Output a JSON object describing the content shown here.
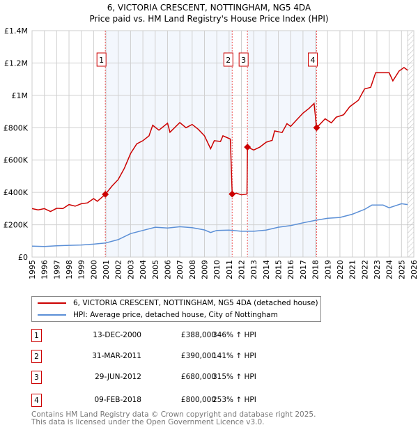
{
  "title_line1": "6, VICTORIA CRESCENT, NOTTINGHAM, NG5 4DA",
  "title_line2": "Price paid vs. HM Land Registry's House Price Index (HPI)",
  "chart_data": {
    "type": "line",
    "xlim": [
      1995,
      2026
    ],
    "ylim": [
      0,
      1400000
    ],
    "y_ticks": [
      0,
      200000,
      400000,
      600000,
      800000,
      1000000,
      1200000,
      1400000
    ],
    "y_tick_labels": [
      "£0",
      "£200K",
      "£400K",
      "£600K",
      "£800K",
      "£1M",
      "£1.2M",
      "£1.4M"
    ],
    "x_ticks": [
      "1995",
      "1996",
      "1997",
      "1998",
      "1999",
      "2000",
      "2001",
      "2002",
      "2003",
      "2004",
      "2005",
      "2006",
      "2007",
      "2008",
      "2009",
      "2010",
      "2011",
      "2012",
      "2013",
      "2014",
      "2015",
      "2016",
      "2017",
      "2018",
      "2019",
      "2020",
      "2021",
      "2022",
      "2023",
      "2024",
      "2025",
      "2026"
    ],
    "grid": true,
    "forecast_hatch_from": 2025.5,
    "shaded_ranges": [
      [
        2000.95,
        2011.25
      ],
      [
        2012.49,
        2018.11
      ]
    ],
    "series": [
      {
        "name": "6, VICTORIA CRESCENT, NOTTINGHAM, NG5 4DA (detached house)",
        "color": "#cc0000",
        "points": [
          [
            1995,
            300000
          ],
          [
            1995.5,
            292000
          ],
          [
            1996,
            300000
          ],
          [
            1996.5,
            282000
          ],
          [
            1997,
            302000
          ],
          [
            1997.5,
            300000
          ],
          [
            1998,
            325000
          ],
          [
            1998.5,
            315000
          ],
          [
            1999,
            330000
          ],
          [
            1999.5,
            335000
          ],
          [
            2000,
            362000
          ],
          [
            2000.3,
            345000
          ],
          [
            2000.95,
            388000
          ],
          [
            2001.5,
            440000
          ],
          [
            2002,
            480000
          ],
          [
            2002.5,
            550000
          ],
          [
            2003,
            640000
          ],
          [
            2003.5,
            700000
          ],
          [
            2004,
            720000
          ],
          [
            2004.5,
            750000
          ],
          [
            2004.8,
            815000
          ],
          [
            2005.3,
            785000
          ],
          [
            2006,
            828000
          ],
          [
            2006.2,
            772000
          ],
          [
            2007,
            832000
          ],
          [
            2007.5,
            800000
          ],
          [
            2008,
            820000
          ],
          [
            2008.5,
            790000
          ],
          [
            2009,
            750000
          ],
          [
            2009.5,
            670000
          ],
          [
            2009.8,
            720000
          ],
          [
            2010.3,
            715000
          ],
          [
            2010.5,
            750000
          ],
          [
            2011.1,
            730000
          ],
          [
            2011.25,
            390000
          ],
          [
            2011.6,
            395000
          ],
          [
            2012,
            385000
          ],
          [
            2012.45,
            390000
          ],
          [
            2012.49,
            680000
          ],
          [
            2013,
            662000
          ],
          [
            2013.5,
            680000
          ],
          [
            2014,
            710000
          ],
          [
            2014.5,
            722000
          ],
          [
            2014.7,
            780000
          ],
          [
            2015.3,
            770000
          ],
          [
            2015.7,
            825000
          ],
          [
            2016,
            808000
          ],
          [
            2016.5,
            850000
          ],
          [
            2017,
            890000
          ],
          [
            2017.5,
            920000
          ],
          [
            2017.9,
            950000
          ],
          [
            2018.11,
            800000
          ],
          [
            2018.8,
            855000
          ],
          [
            2019.3,
            830000
          ],
          [
            2019.7,
            865000
          ],
          [
            2020.3,
            880000
          ],
          [
            2020.8,
            930000
          ],
          [
            2021.5,
            970000
          ],
          [
            2022,
            1040000
          ],
          [
            2022.5,
            1050000
          ],
          [
            2022.9,
            1140000
          ],
          [
            2023.5,
            1140000
          ],
          [
            2024,
            1140000
          ],
          [
            2024.3,
            1090000
          ],
          [
            2024.8,
            1150000
          ],
          [
            2025.2,
            1172000
          ],
          [
            2025.5,
            1155000
          ]
        ]
      },
      {
        "name": "HPI: Average price, detached house, City of Nottingham",
        "color": "#5b8fd6",
        "points": [
          [
            1995,
            68000
          ],
          [
            1996,
            66000
          ],
          [
            1997,
            70000
          ],
          [
            1998,
            73000
          ],
          [
            1999,
            75000
          ],
          [
            2000,
            80000
          ],
          [
            2000.95,
            87000
          ],
          [
            2002,
            108000
          ],
          [
            2003,
            145000
          ],
          [
            2004,
            165000
          ],
          [
            2005,
            185000
          ],
          [
            2006,
            180000
          ],
          [
            2007,
            188000
          ],
          [
            2008,
            182000
          ],
          [
            2009,
            168000
          ],
          [
            2009.5,
            152000
          ],
          [
            2010,
            165000
          ],
          [
            2011,
            167000
          ],
          [
            2012,
            160000
          ],
          [
            2013,
            160000
          ],
          [
            2014,
            167000
          ],
          [
            2015,
            185000
          ],
          [
            2016,
            195000
          ],
          [
            2017,
            212000
          ],
          [
            2018,
            227000
          ],
          [
            2019,
            240000
          ],
          [
            2020,
            245000
          ],
          [
            2021,
            265000
          ],
          [
            2022,
            295000
          ],
          [
            2022.6,
            322000
          ],
          [
            2023.5,
            322000
          ],
          [
            2024,
            305000
          ],
          [
            2025,
            330000
          ],
          [
            2025.5,
            325000
          ]
        ]
      }
    ],
    "sales": [
      {
        "label": "1",
        "year": 2000.95,
        "price": 388000,
        "date": "13-DEC-2000",
        "price_text": "£388,000",
        "hpi_text": "346% ↑ HPI"
      },
      {
        "label": "2",
        "year": 2011.25,
        "price": 390000,
        "date": "31-MAR-2011",
        "price_text": "£390,000",
        "hpi_text": "141% ↑ HPI"
      },
      {
        "label": "3",
        "year": 2012.49,
        "price": 680000,
        "date": "29-JUN-2012",
        "price_text": "£680,000",
        "hpi_text": "315% ↑ HPI"
      },
      {
        "label": "4",
        "year": 2018.11,
        "price": 800000,
        "date": "09-FEB-2018",
        "price_text": "£800,000",
        "hpi_text": "253% ↑ HPI"
      }
    ]
  },
  "legend": {
    "property": "6, VICTORIA CRESCENT, NOTTINGHAM, NG5 4DA (detached house)",
    "hpi": "HPI: Average price, detached house, City of Nottingham"
  },
  "footer": {
    "line1": "Contains HM Land Registry data © Crown copyright and database right 2025.",
    "line2": "This data is licensed under the Open Government Licence v3.0."
  }
}
